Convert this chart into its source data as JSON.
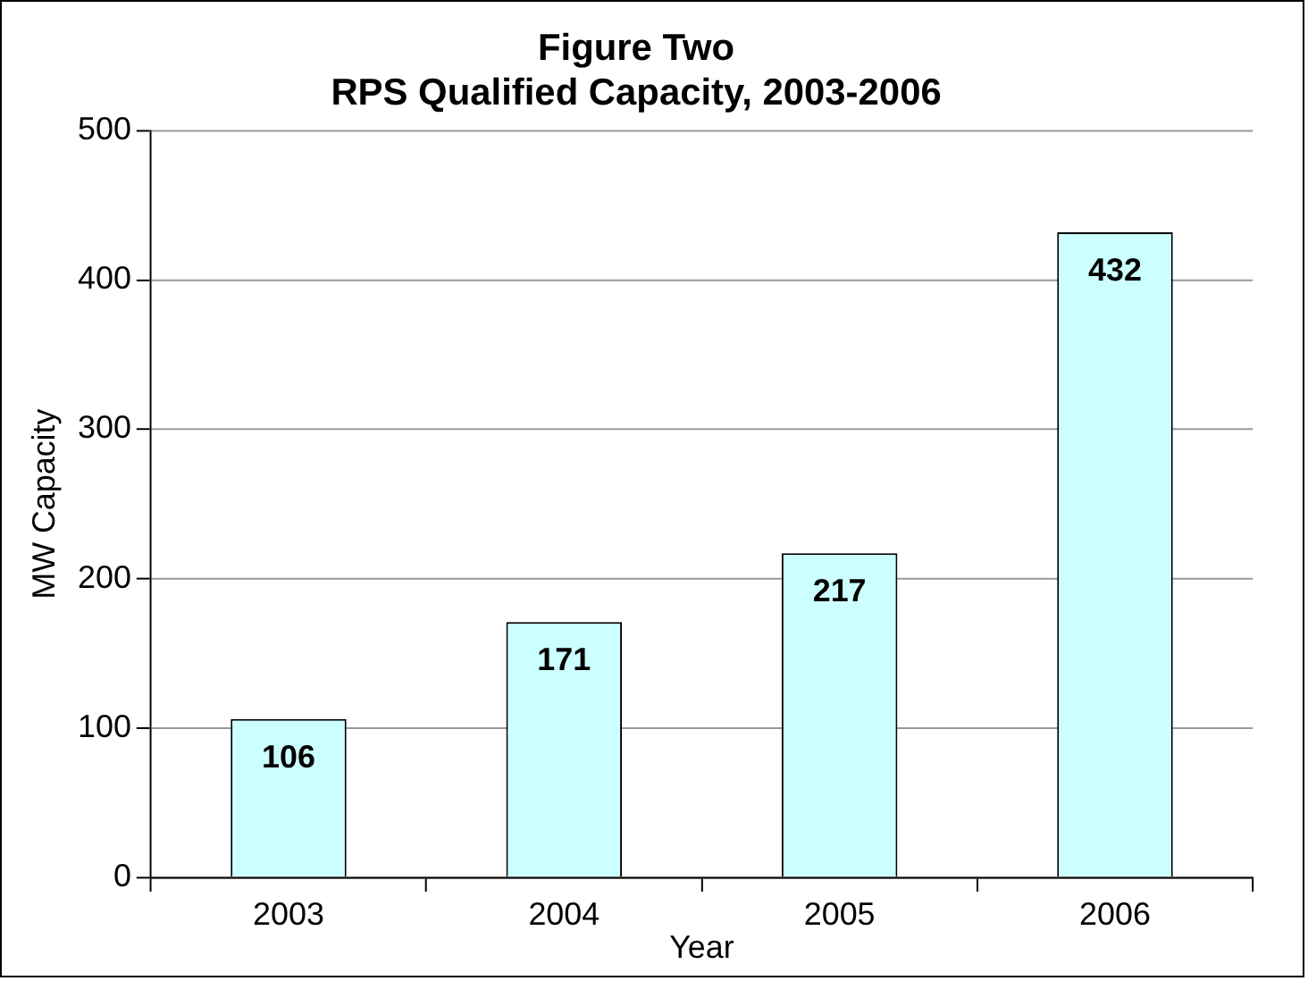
{
  "chart_data": {
    "type": "bar",
    "title": "Figure Two",
    "subtitle": "RPS Qualified Capacity, 2003-2006",
    "xlabel": "Year",
    "ylabel": "MW Capacity",
    "categories": [
      "2003",
      "2004",
      "2005",
      "2006"
    ],
    "values": [
      106,
      171,
      217,
      432
    ],
    "color": "#ccffff",
    "ylim": [
      0,
      500
    ],
    "yticks": [
      0,
      100,
      200,
      300,
      400,
      500
    ],
    "grid": "y",
    "data_labels": true,
    "legend": false
  }
}
